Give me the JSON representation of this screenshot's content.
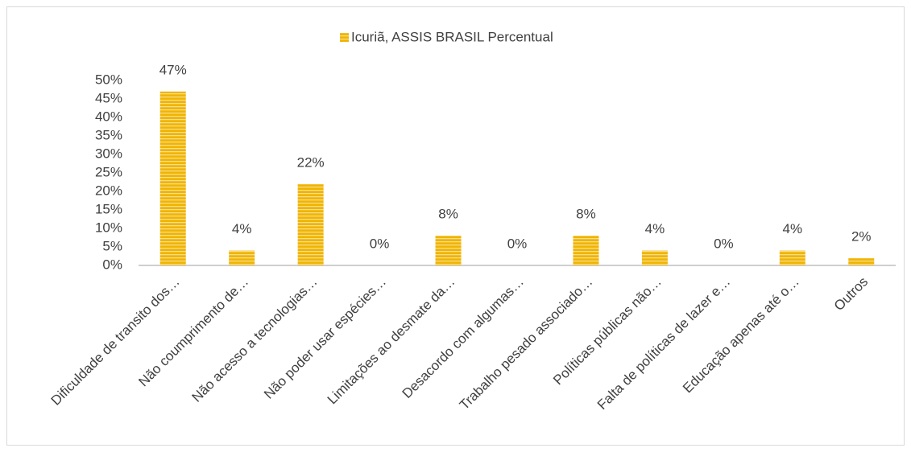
{
  "chart_data": {
    "type": "bar",
    "legend": "Icuriã, ASSIS BRASIL Percentual",
    "categories": [
      "Dificuldade de transito dos…",
      "Não coumprimento de…",
      "Não acesso a tecnologias…",
      "Não poder usar espécies…",
      "Limitações ao desmate da…",
      "Desacordo com algumas…",
      "Trabalho pesado associado…",
      "Políticas públicas não…",
      "Falta de políticas de lazer e…",
      "Educação apenas até o…",
      "Outros"
    ],
    "values": [
      47,
      4,
      22,
      0,
      8,
      0,
      8,
      4,
      0,
      4,
      2
    ],
    "value_labels": [
      "47%",
      "4%",
      "22%",
      "0%",
      "8%",
      "0%",
      "8%",
      "4%",
      "0%",
      "4%",
      "2%"
    ],
    "color": "#f0b400",
    "ylim": [
      0,
      50
    ],
    "yticks": [
      {
        "value": 0,
        "label": "0%"
      },
      {
        "value": 5,
        "label": "5%"
      },
      {
        "value": 10,
        "label": "10%"
      },
      {
        "value": 15,
        "label": "15%"
      },
      {
        "value": 20,
        "label": "20%"
      },
      {
        "value": 25,
        "label": "25%"
      },
      {
        "value": 30,
        "label": "30%"
      },
      {
        "value": 35,
        "label": "35%"
      },
      {
        "value": 40,
        "label": "40%"
      },
      {
        "value": 45,
        "label": "45%"
      },
      {
        "value": 50,
        "label": "50%"
      }
    ],
    "grid": false
  }
}
